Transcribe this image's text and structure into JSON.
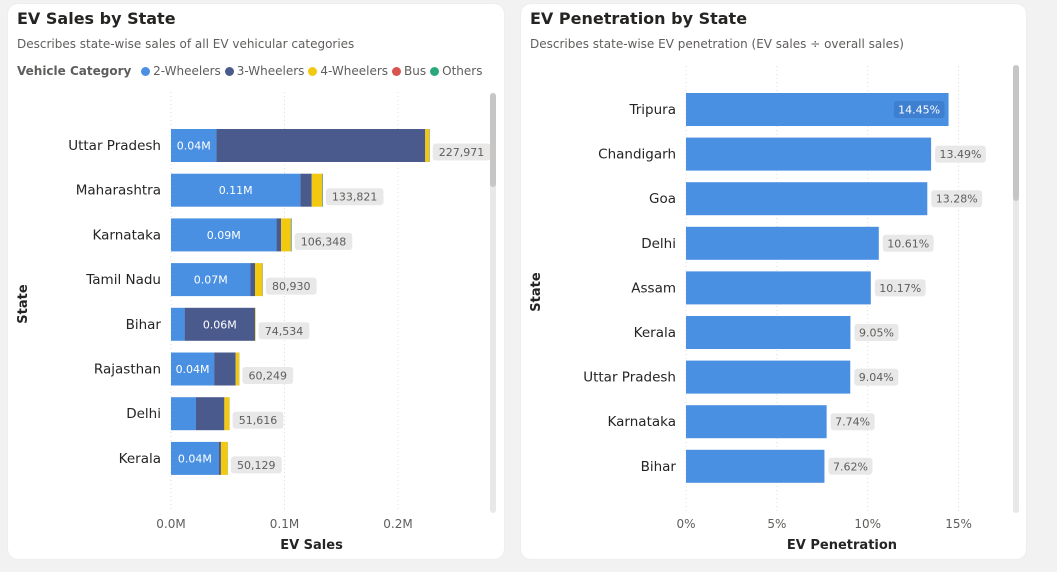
{
  "colors": {
    "two_wheelers": "#4a90e2",
    "three_wheelers": "#4b5a8c",
    "four_wheelers": "#f2c811",
    "bus": "#d9534f",
    "others": "#2ba87a",
    "penetration_bar": "#4a90e2",
    "label_bg": "#e8e8e8"
  },
  "sales_card": {
    "title": "EV Sales by State",
    "subtitle": "Describes state-wise sales of all EV vehicular categories",
    "legend_title": "Vehicle Category",
    "legend_items": [
      {
        "label": "2-Wheelers",
        "color": "#4a90e2"
      },
      {
        "label": "3-Wheelers",
        "color": "#4b5a8c"
      },
      {
        "label": "4-Wheelers",
        "color": "#f2c811"
      },
      {
        "label": "Bus",
        "color": "#d9534f"
      },
      {
        "label": "Others",
        "color": "#2ba87a"
      }
    ]
  },
  "penetration_card": {
    "title": "EV Penetration by State",
    "subtitle": "Describes state-wise EV penetration (EV sales ÷ overall sales)"
  },
  "chart_data": [
    {
      "type": "bar",
      "orientation": "horizontal",
      "stacked": true,
      "title": "EV Sales by State",
      "xlabel": "EV Sales",
      "ylabel": "State",
      "xlim": [
        0,
        250000
      ],
      "xticks": [
        {
          "value": 0,
          "label": "0.0M"
        },
        {
          "value": 100000,
          "label": "0.1M"
        },
        {
          "value": 200000,
          "label": "0.2M"
        }
      ],
      "grid": true,
      "categories": [
        "Uttar Pradesh",
        "Maharashtra",
        "Karnataka",
        "Tamil Nadu",
        "Bihar",
        "Rajasthan",
        "Delhi",
        "Kerala"
      ],
      "series": [
        {
          "name": "2-Wheelers",
          "color": "#4a90e2",
          "values": [
            40000,
            114000,
            93000,
            70000,
            12000,
            38000,
            22000,
            42000
          ],
          "labels": [
            "0.04M",
            "0.11M",
            "0.09M",
            "0.07M",
            "",
            "0.04M",
            "",
            "0.04M"
          ]
        },
        {
          "name": "3-Wheelers",
          "color": "#4b5a8c",
          "values": [
            184000,
            10000,
            4000,
            4000,
            62000,
            19000,
            25000,
            2000
          ],
          "labels": [
            "",
            "",
            "",
            "",
            "0.06M",
            "",
            "",
            ""
          ]
        },
        {
          "name": "4-Wheelers",
          "color": "#f2c811",
          "values": [
            3500,
            9000,
            8500,
            6500,
            500,
            3000,
            4500,
            6000
          ],
          "labels": [
            "",
            "",
            "",
            "",
            "",
            "",
            "",
            ""
          ]
        },
        {
          "name": "Bus",
          "color": "#d9534f",
          "values": [
            200,
            300,
            300,
            200,
            0,
            100,
            0,
            0
          ],
          "labels": [
            "",
            "",
            "",
            "",
            "",
            "",
            "",
            ""
          ]
        },
        {
          "name": "Others",
          "color": "#2ba87a",
          "values": [
            271,
            521,
            548,
            230,
            34,
            149,
            116,
            129
          ],
          "labels": [
            "",
            "",
            "",
            "",
            "",
            "",
            "",
            ""
          ]
        }
      ],
      "totals": [
        227971,
        133821,
        106348,
        80930,
        74534,
        60249,
        51616,
        50129
      ],
      "total_labels": [
        "227,971",
        "133,821",
        "106,348",
        "80,930",
        "74,534",
        "60,249",
        "51,616",
        "50,129"
      ]
    },
    {
      "type": "bar",
      "orientation": "horizontal",
      "title": "EV Penetration by State",
      "xlabel": "EV Penetration",
      "ylabel": "State",
      "xlim": [
        0,
        17
      ],
      "xticks": [
        {
          "value": 0,
          "label": "0%"
        },
        {
          "value": 5,
          "label": "5%"
        },
        {
          "value": 10,
          "label": "10%"
        },
        {
          "value": 15,
          "label": "15%"
        }
      ],
      "grid": true,
      "categories": [
        "Tripura",
        "Chandigarh",
        "Goa",
        "Delhi",
        "Assam",
        "Kerala",
        "Uttar Pradesh",
        "Karnataka",
        "Bihar"
      ],
      "values": [
        14.45,
        13.49,
        13.28,
        10.61,
        10.17,
        9.05,
        9.04,
        7.74,
        7.62
      ],
      "labels": [
        "14.45%",
        "13.49%",
        "13.28%",
        "10.61%",
        "10.17%",
        "9.05%",
        "9.04%",
        "7.74%",
        "7.62%"
      ]
    }
  ]
}
